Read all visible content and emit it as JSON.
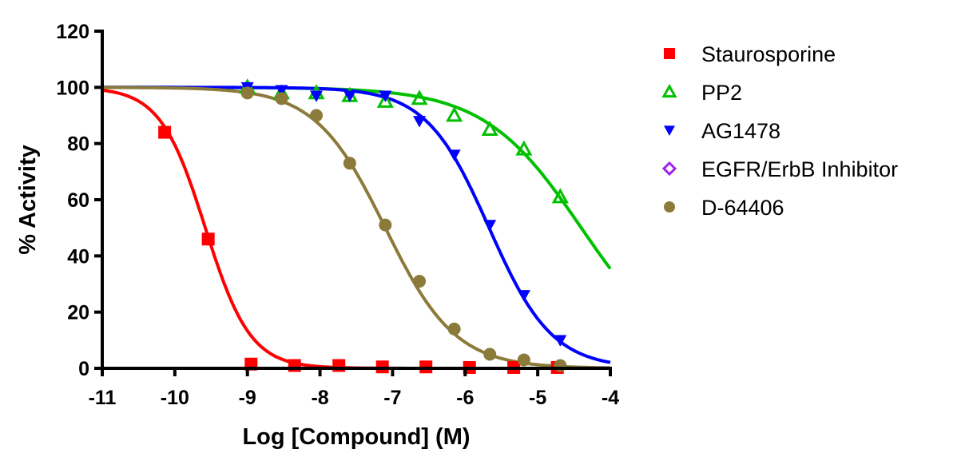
{
  "chart_data": {
    "type": "scatter",
    "title": "",
    "xlabel": "Log [Compound] (M)",
    "ylabel": "% Activity",
    "xlim": [
      -11,
      -4
    ],
    "ylim": [
      0,
      120
    ],
    "xticks": [
      "-11",
      "-10",
      "-9",
      "-8",
      "-7",
      "-6",
      "-5",
      "-4"
    ],
    "yticks": [
      "0",
      "20",
      "40",
      "60",
      "80",
      "100",
      "120"
    ],
    "legend_position": "right",
    "series": [
      {
        "name": "Staurosporine",
        "color": "#ff0000",
        "marker": "square",
        "fit": {
          "top": 100,
          "bottom": 0,
          "logIC50": -9.58,
          "hill": 1.4
        },
        "x": [
          -10.14,
          -9.54,
          -8.95,
          -8.35,
          -7.74,
          -7.14,
          -6.54,
          -5.94,
          -5.33,
          -4.73
        ],
        "y": [
          84,
          46,
          1.5,
          1,
          1,
          0.5,
          0.5,
          0.3,
          0.3,
          0.3
        ]
      },
      {
        "name": "PP2",
        "color": "#00c000",
        "marker": "triangle-open",
        "fit": {
          "top": 100,
          "bottom": 0,
          "logIC50": -4.4,
          "hill": 0.65
        },
        "x": [
          -9.0,
          -8.53,
          -8.05,
          -7.59,
          -7.1,
          -6.63,
          -6.15,
          -5.66,
          -5.19,
          -4.69
        ],
        "y": [
          100,
          98,
          98,
          97,
          95,
          96,
          90,
          85,
          78,
          61
        ]
      },
      {
        "name": "AG1478",
        "color": "#0000ff",
        "marker": "triangle-down",
        "fit": {
          "top": 100,
          "bottom": 0,
          "logIC50": -5.67,
          "hill": 1.0
        },
        "x": [
          -9.0,
          -8.53,
          -8.05,
          -7.59,
          -7.1,
          -6.63,
          -6.15,
          -5.66,
          -5.19,
          -4.69
        ],
        "y": [
          100,
          99,
          97,
          97,
          97,
          88,
          76,
          51,
          26,
          10
        ]
      },
      {
        "name": "EGFR/ErbB Inhibitor",
        "color": "#a020f0",
        "marker": "diamond-open",
        "x": [],
        "y": []
      },
      {
        "name": "D-64406",
        "color": "#8b7a3a",
        "marker": "circle",
        "fit": {
          "top": 100,
          "bottom": 0,
          "logIC50": -7.1,
          "hill": 0.9
        },
        "x": [
          -9.0,
          -8.53,
          -8.05,
          -7.59,
          -7.1,
          -6.63,
          -6.15,
          -5.66,
          -5.19,
          -4.69
        ],
        "y": [
          98,
          96,
          90,
          73,
          51,
          31,
          14,
          5,
          3,
          1
        ]
      }
    ]
  }
}
